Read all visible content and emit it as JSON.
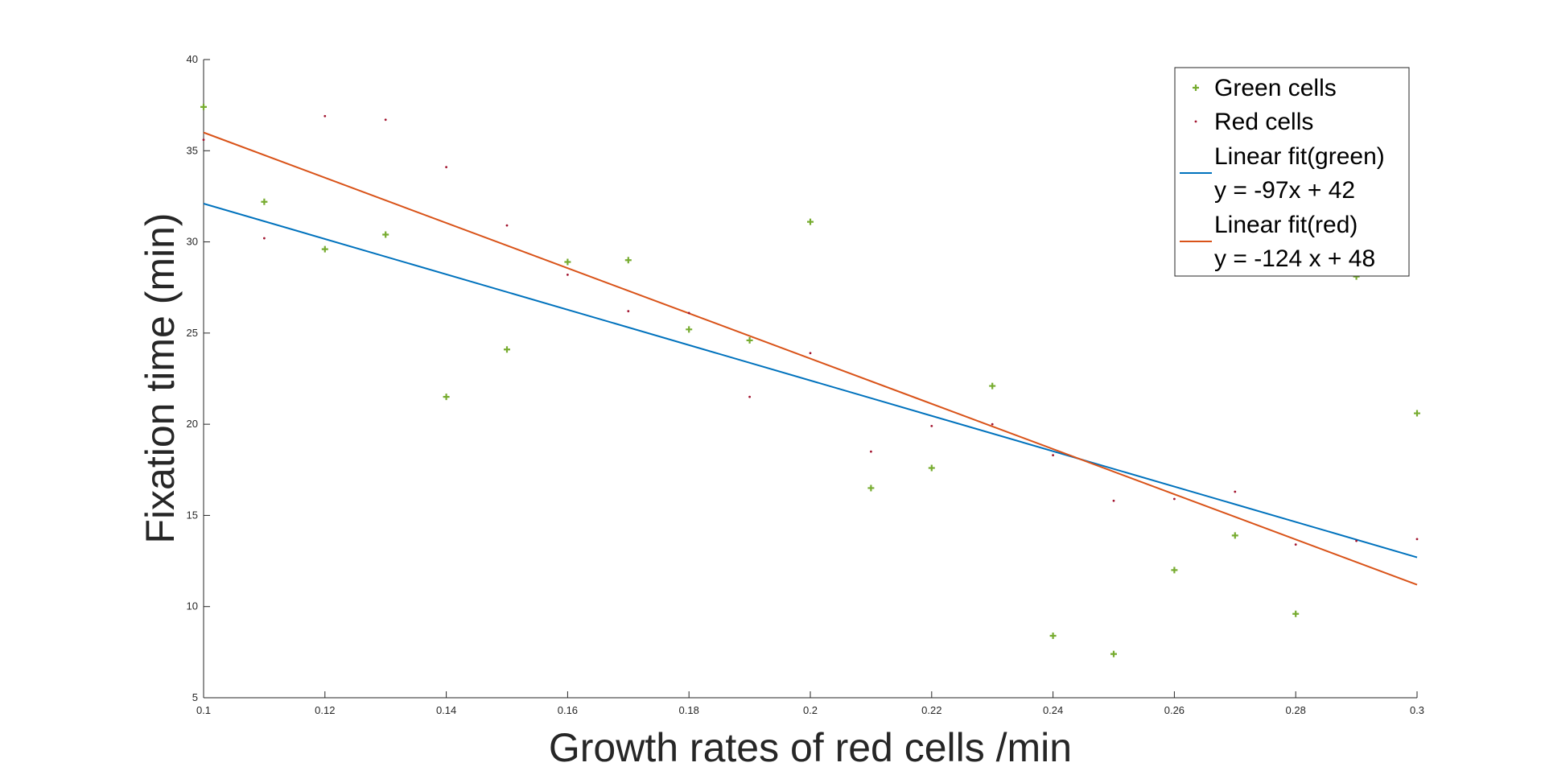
{
  "chart_data": {
    "type": "scatter",
    "xlabel": "Growth rates of red cells /min",
    "ylabel": "Fixation time (min)",
    "xlim": [
      0.1,
      0.3
    ],
    "ylim": [
      5,
      40
    ],
    "x_ticks": [
      "0.1",
      "0.12",
      "0.14",
      "0.16",
      "0.18",
      "0.2",
      "0.22",
      "0.24",
      "0.26",
      "0.28",
      "0.3"
    ],
    "y_ticks": [
      "5",
      "10",
      "15",
      "20",
      "25",
      "30",
      "35",
      "40"
    ],
    "grid": false,
    "legend_position": "top-right",
    "series": [
      {
        "name": "Green cells",
        "kind": "scatter",
        "marker": "plus",
        "color": "#77AC30",
        "x": [
          0.1,
          0.11,
          0.12,
          0.13,
          0.14,
          0.15,
          0.16,
          0.17,
          0.18,
          0.19,
          0.2,
          0.21,
          0.22,
          0.23,
          0.24,
          0.25,
          0.26,
          0.27,
          0.28,
          0.29,
          0.3
        ],
        "y": [
          37.4,
          32.2,
          29.6,
          30.4,
          21.5,
          24.1,
          28.9,
          29.0,
          25.2,
          24.6,
          31.1,
          16.5,
          17.6,
          22.1,
          8.4,
          7.4,
          12.0,
          13.9,
          9.6,
          28.1,
          20.6
        ]
      },
      {
        "name": "Red cells",
        "kind": "scatter",
        "marker": "point",
        "color": "#A2142F",
        "x": [
          0.1,
          0.11,
          0.12,
          0.13,
          0.14,
          0.15,
          0.16,
          0.17,
          0.18,
          0.19,
          0.2,
          0.21,
          0.22,
          0.23,
          0.24,
          0.25,
          0.26,
          0.27,
          0.28,
          0.29,
          0.3
        ],
        "y": [
          35.6,
          30.2,
          36.9,
          36.7,
          34.1,
          30.9,
          28.2,
          26.2,
          26.1,
          21.5,
          23.9,
          18.5,
          19.9,
          20.0,
          18.3,
          15.8,
          15.9,
          16.3,
          13.4,
          13.6,
          13.7
        ]
      },
      {
        "name": "Linear fit(green)",
        "name_line2": "y = -97x + 42",
        "kind": "line",
        "color": "#0072BD",
        "x": [
          0.1,
          0.3
        ],
        "y": [
          32.1,
          12.7
        ]
      },
      {
        "name": "Linear fit(red)",
        "name_line2": "y = -124 x + 48",
        "kind": "line",
        "color": "#D95319",
        "x": [
          0.1,
          0.3
        ],
        "y": [
          36.0,
          11.2
        ]
      }
    ]
  }
}
